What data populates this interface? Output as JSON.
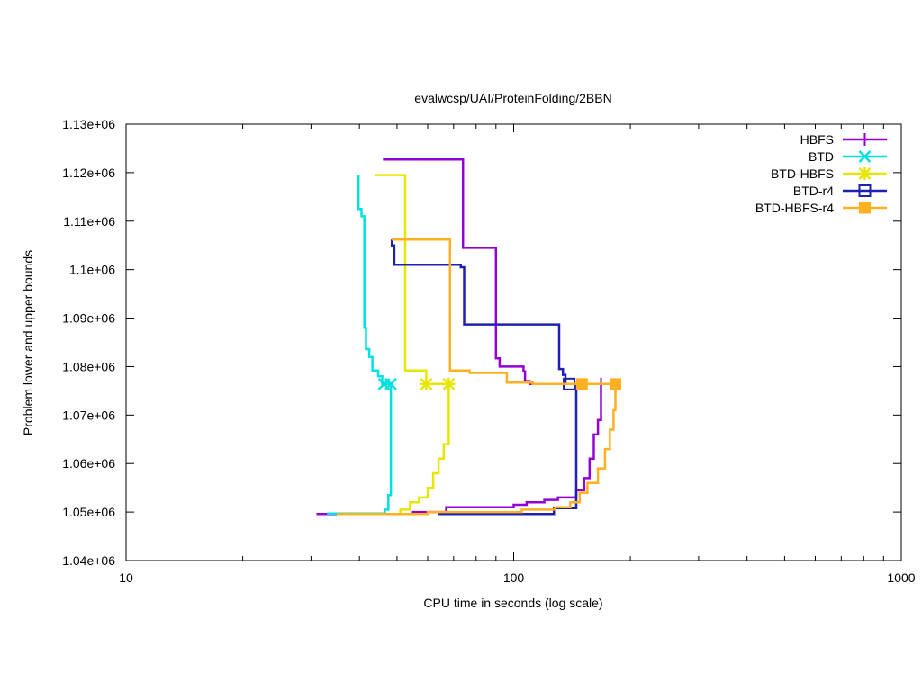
{
  "chart_data": {
    "type": "line",
    "title": "evalwcsp/UAI/ProteinFolding/2BBN",
    "xlabel": "CPU time in seconds (log scale)",
    "ylabel": "Problem lower and upper bounds",
    "x_scale": "log",
    "xlim": [
      10,
      1000
    ],
    "ylim": [
      1040000,
      1130000
    ],
    "x_ticks": [
      10,
      100,
      1000
    ],
    "x_tick_labels": [
      "10",
      "100",
      "1000"
    ],
    "y_ticks": [
      1040000,
      1050000,
      1060000,
      1070000,
      1080000,
      1090000,
      1100000,
      1110000,
      1120000,
      1130000
    ],
    "y_tick_labels": [
      "1.04e+06",
      "1.05e+06",
      "1.06e+06",
      "1.07e+06",
      "1.08e+06",
      "1.09e+06",
      "1.1e+06",
      "1.11e+06",
      "1.12e+06",
      "1.13e+06"
    ],
    "grid": false,
    "legend_position": "top-right",
    "series": [
      {
        "name": "HBFS",
        "color": "#9400d3",
        "marker": "plus",
        "upper": [
          [
            46,
            1122700
          ],
          [
            74,
            1122700
          ],
          [
            74,
            1104500
          ],
          [
            90,
            1104500
          ],
          [
            90,
            1081700
          ],
          [
            92,
            1081700
          ],
          [
            92,
            1080000
          ],
          [
            106,
            1080000
          ],
          [
            106,
            1079000
          ],
          [
            107,
            1079000
          ],
          [
            107,
            1077000
          ],
          [
            110,
            1077000
          ],
          [
            110,
            1076400
          ],
          [
            168,
            1076400
          ]
        ],
        "lower": [
          [
            31,
            1049600
          ],
          [
            55,
            1049600
          ],
          [
            55,
            1050000
          ],
          [
            67,
            1050000
          ],
          [
            67,
            1051000
          ],
          [
            100,
            1051000
          ],
          [
            100,
            1051500
          ],
          [
            108,
            1051500
          ],
          [
            108,
            1052000
          ],
          [
            120,
            1052000
          ],
          [
            120,
            1052500
          ],
          [
            130,
            1052500
          ],
          [
            130,
            1053000
          ],
          [
            145,
            1053000
          ],
          [
            145,
            1054500
          ],
          [
            152,
            1054500
          ],
          [
            152,
            1057000
          ],
          [
            157,
            1057000
          ],
          [
            157,
            1061000
          ],
          [
            161,
            1061000
          ],
          [
            161,
            1066000
          ],
          [
            165,
            1066000
          ],
          [
            165,
            1069000
          ],
          [
            168,
            1069000
          ],
          [
            168,
            1076400
          ]
        ],
        "markers": [
          [
            168,
            1076400
          ]
        ]
      },
      {
        "name": "BTD",
        "color": "#00e0e0",
        "marker": "x",
        "upper": [
          [
            39.8,
            1119500
          ],
          [
            39.8,
            1112500
          ],
          [
            40.5,
            1112500
          ],
          [
            40.5,
            1111000
          ],
          [
            41.2,
            1111000
          ],
          [
            41.2,
            1088000
          ],
          [
            41.6,
            1088000
          ],
          [
            41.6,
            1083600
          ],
          [
            42.4,
            1083600
          ],
          [
            42.4,
            1082000
          ],
          [
            43.2,
            1082000
          ],
          [
            43.2,
            1079200
          ],
          [
            44.7,
            1079200
          ],
          [
            44.7,
            1078000
          ],
          [
            45.8,
            1078000
          ],
          [
            45.8,
            1076400
          ],
          [
            47.8,
            1076400
          ]
        ],
        "lower": [
          [
            33,
            1049700
          ],
          [
            46.5,
            1049700
          ],
          [
            46.5,
            1050500
          ],
          [
            47.5,
            1050500
          ],
          [
            47.5,
            1053500
          ],
          [
            48.2,
            1053500
          ],
          [
            48.2,
            1076400
          ]
        ],
        "markers": [
          [
            46.3,
            1076400
          ],
          [
            48.2,
            1076400
          ]
        ]
      },
      {
        "name": "BTD-HBFS",
        "color": "#e6e600",
        "marker": "star",
        "upper": [
          [
            44,
            1119500
          ],
          [
            52.5,
            1119500
          ],
          [
            52.5,
            1079200
          ],
          [
            59.5,
            1079200
          ],
          [
            59.5,
            1076400
          ],
          [
            68,
            1076400
          ]
        ],
        "lower": [
          [
            35,
            1049600
          ],
          [
            51,
            1049600
          ],
          [
            51,
            1050500
          ],
          [
            54,
            1050500
          ],
          [
            54,
            1052000
          ],
          [
            57,
            1052000
          ],
          [
            57,
            1053000
          ],
          [
            60,
            1053000
          ],
          [
            60,
            1055000
          ],
          [
            62,
            1055000
          ],
          [
            62,
            1058000
          ],
          [
            64,
            1058000
          ],
          [
            64,
            1061000
          ],
          [
            66,
            1061000
          ],
          [
            66,
            1064000
          ],
          [
            68,
            1064000
          ],
          [
            68,
            1076400
          ]
        ],
        "markers": [
          [
            59.5,
            1076400
          ],
          [
            68,
            1076400
          ]
        ]
      },
      {
        "name": "BTD-r4",
        "color": "#2020b0",
        "marker": "square",
        "upper": [
          [
            48.5,
            1106200
          ],
          [
            48.5,
            1105000
          ],
          [
            49.2,
            1105000
          ],
          [
            49.2,
            1101000
          ],
          [
            73,
            1101000
          ],
          [
            73,
            1100500
          ],
          [
            74.5,
            1100500
          ],
          [
            74.5,
            1088700
          ],
          [
            131,
            1088700
          ],
          [
            131,
            1079500
          ],
          [
            134,
            1079500
          ],
          [
            134,
            1078300
          ],
          [
            136,
            1078300
          ],
          [
            136,
            1076400
          ],
          [
            139,
            1076400
          ]
        ],
        "lower": [
          [
            64,
            1049600
          ],
          [
            127,
            1049600
          ],
          [
            127,
            1050800
          ],
          [
            145,
            1050800
          ],
          [
            145,
            1076400
          ]
        ],
        "markers": [
          [
            139,
            1076400
          ]
        ]
      },
      {
        "name": "BTD-HBFS-r4",
        "color": "#ffb020",
        "marker": "filled-square",
        "upper": [
          [
            48.5,
            1106200
          ],
          [
            68.5,
            1106200
          ],
          [
            68.5,
            1079200
          ],
          [
            77,
            1079200
          ],
          [
            77,
            1078700
          ],
          [
            96,
            1078700
          ],
          [
            96,
            1076700
          ],
          [
            112,
            1076700
          ],
          [
            112,
            1076400
          ],
          [
            183,
            1076400
          ]
        ],
        "lower": [
          [
            35,
            1049600
          ],
          [
            60,
            1049600
          ],
          [
            60,
            1050000
          ],
          [
            105,
            1050000
          ],
          [
            105,
            1050500
          ],
          [
            128,
            1050500
          ],
          [
            128,
            1051000
          ],
          [
            140,
            1051000
          ],
          [
            140,
            1052000
          ],
          [
            148,
            1052000
          ],
          [
            148,
            1054000
          ],
          [
            155,
            1054000
          ],
          [
            155,
            1056000
          ],
          [
            165,
            1056000
          ],
          [
            165,
            1059000
          ],
          [
            172,
            1059000
          ],
          [
            172,
            1063000
          ],
          [
            177,
            1063000
          ],
          [
            177,
            1067000
          ],
          [
            181,
            1067000
          ],
          [
            181,
            1071000
          ],
          [
            183,
            1071000
          ],
          [
            183,
            1076400
          ]
        ],
        "markers": [
          [
            150,
            1076400
          ],
          [
            183,
            1076400
          ]
        ]
      }
    ]
  }
}
